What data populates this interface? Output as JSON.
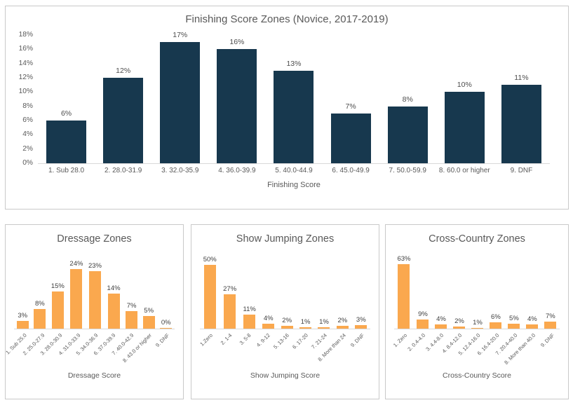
{
  "colors": {
    "bar_navy": "#17384E",
    "bar_orange": "#FAA84E",
    "title_text": "#595959",
    "axis_text": "#595959",
    "data_label_text": "#4D4D4D",
    "panel_border": "#C9C9C9",
    "axis_line": "#D9D9D9"
  },
  "chart_data": [
    {
      "id": "finishing-score-zones",
      "type": "bar",
      "title": "Finishing Score Zones (Novice, 2017-2019)",
      "xlabel": "Finishing Score",
      "categories": [
        "1. Sub 28.0",
        "2. 28.0-31.9",
        "3. 32.0-35.9",
        "4. 36.0-39.9",
        "5. 40.0-44.9",
        "6. 45.0-49.9",
        "7. 50.0-59.9",
        "8. 60.0 or higher",
        "9. DNF"
      ],
      "values": [
        6,
        12,
        17,
        16,
        13,
        7,
        8,
        10,
        11
      ],
      "data_labels": [
        "6%",
        "12%",
        "17%",
        "16%",
        "13%",
        "7%",
        "8%",
        "10%",
        "11%"
      ],
      "ylim": [
        0,
        18
      ],
      "yticks": [
        "0%",
        "2%",
        "4%",
        "6%",
        "8%",
        "10%",
        "12%",
        "14%",
        "16%",
        "18%"
      ],
      "bar_color": "#17384E",
      "grid": "off",
      "legend": "none"
    },
    {
      "id": "dressage-zones",
      "type": "bar",
      "title": "Dressage Zones",
      "xlabel": "Dressage Score",
      "categories": [
        "1. Sub 25.0",
        "2. 25.0-27.9",
        "3. 28.0-30.9",
        "4. 31.0-33.9",
        "5. 34.0-36.9",
        "6. 37.0-39.9",
        "7. 40.0-42.9",
        "8. 43.0 or higher",
        "9. DNF"
      ],
      "values": [
        3,
        8,
        15,
        24,
        23,
        14,
        7,
        5,
        0
      ],
      "data_labels": [
        "3%",
        "8%",
        "15%",
        "24%",
        "23%",
        "14%",
        "7%",
        "5%",
        "0%"
      ],
      "ylim": [
        0,
        27
      ],
      "yticks": [],
      "bar_color": "#FAA84E",
      "grid": "off",
      "legend": "none"
    },
    {
      "id": "show-jumping-zones",
      "type": "bar",
      "title": "Show Jumping Zones",
      "xlabel": "Show Jumping Score",
      "categories": [
        "1.Zero",
        "2. 1-4",
        "3. 5-8",
        "4. 9-12",
        "5. 13-16",
        "6. 17-20",
        "7. 21-24",
        "8. More than 24",
        "9. DNF"
      ],
      "values": [
        50,
        27,
        11,
        4,
        2,
        1,
        1,
        2,
        3
      ],
      "data_labels": [
        "50%",
        "27%",
        "11%",
        "4%",
        "2%",
        "1%",
        "1%",
        "2%",
        "3%"
      ],
      "ylim": [
        0,
        53
      ],
      "yticks": [],
      "bar_color": "#FAA84E",
      "grid": "off",
      "legend": "none"
    },
    {
      "id": "cross-country-zones",
      "type": "bar",
      "title": "Cross-Country Zones",
      "xlabel": "Cross-Country Score",
      "categories": [
        "1. Zero",
        "2. 0.4-4.0",
        "3. 4.4-8.0",
        "4. 8.4-12.0",
        "5. 12.4-16.0",
        "6. 16.4-20.0",
        "7. 20.4-40.0",
        "8. More than 40.0",
        "9. DNF"
      ],
      "values": [
        63,
        9,
        4,
        2,
        1,
        6,
        5,
        4,
        7
      ],
      "data_labels": [
        "63%",
        "9%",
        "4%",
        "2%",
        "1%",
        "6%",
        "5%",
        "4%",
        "7%"
      ],
      "ylim": [
        0,
        66
      ],
      "yticks": [],
      "bar_color": "#FAA84E",
      "grid": "off",
      "legend": "none"
    }
  ]
}
